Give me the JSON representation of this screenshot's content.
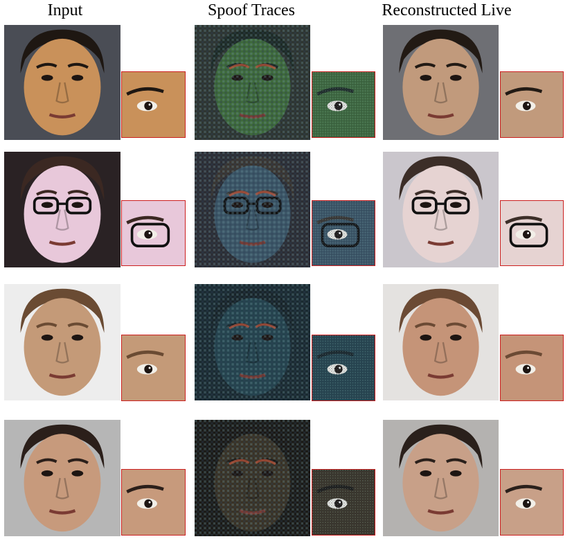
{
  "headers": {
    "input": "Input",
    "spoof_traces": "Spoof Traces",
    "reconstructed_live": "Reconstructed Live"
  },
  "rows": [
    {
      "id": "print-attack",
      "input": {
        "bg": "#4a4d55",
        "skin": "#c9915a",
        "hair": "#1e1712"
      },
      "trace": {
        "bg": "#2e3530",
        "skin": "#3e6a3a",
        "hair": "#1d2a24"
      },
      "live": {
        "bg": "#6e6f74",
        "skin": "#c19a7c",
        "hair": "#221a14"
      }
    },
    {
      "id": "replay-attack",
      "input": {
        "bg": "#2a2224",
        "skin": "#e8c8da",
        "hair": "#3b2822"
      },
      "trace": {
        "bg": "#2c2d33",
        "skin": "#3b5566",
        "hair": "#3a3530"
      },
      "live": {
        "bg": "#cac6cc",
        "skin": "#e6d3d2",
        "hair": "#3c2e28"
      }
    },
    {
      "id": "makeup-attack",
      "input": {
        "bg": "#ededed",
        "skin": "#c49a78",
        "hair": "#6a4b33"
      },
      "trace": {
        "bg": "#1a2a30",
        "skin": "#24434d",
        "hair": "#182428"
      },
      "live": {
        "bg": "#e4e2e0",
        "skin": "#c59478",
        "hair": "#6b4a34"
      }
    },
    {
      "id": "mask-attack",
      "input": {
        "bg": "#b6b6b6",
        "skin": "#c79a7c",
        "hair": "#2b1f1a"
      },
      "trace": {
        "bg": "#1b1a16",
        "skin": "#3a3224",
        "hair": "#1b1814"
      },
      "live": {
        "bg": "#b4b2b0",
        "skin": "#c8a088",
        "hair": "#2a201b"
      }
    }
  ]
}
